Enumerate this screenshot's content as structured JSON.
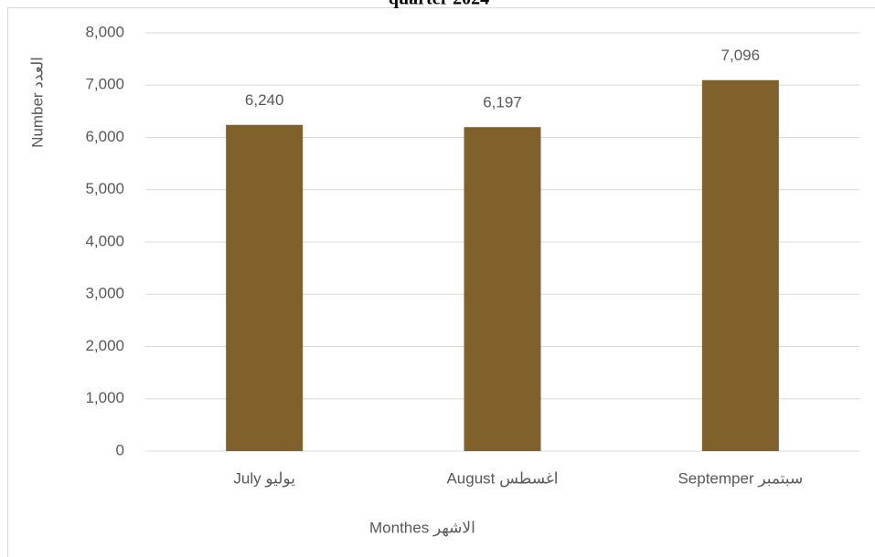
{
  "chart_data": {
    "type": "bar",
    "title": "quarter 2024",
    "categories": [
      "July يوليو",
      "August اغسطس",
      "Septemper سبتمبر"
    ],
    "values": [
      6240,
      6197,
      7096
    ],
    "value_labels": [
      "6,240",
      "6,197",
      "7,096"
    ],
    "color": "#80602b",
    "xlabel": "Monthes الاشهر",
    "ylabel": "Number العدد",
    "ylim": [
      0,
      8000
    ],
    "yticks": [
      0,
      {
        "value": 1000,
        "label": "1,000"
      },
      {
        "value": 2000,
        "label": "2,000"
      },
      {
        "value": 3000,
        "label": "3,000"
      },
      {
        "value": 4000,
        "label": "4,000"
      },
      {
        "value": 5000,
        "label": "5,000"
      },
      {
        "value": 6000,
        "label": "6,000"
      },
      {
        "value": 7000,
        "label": "7,000"
      },
      {
        "value": 8000,
        "label": "8,000"
      }
    ],
    "grid": true
  }
}
